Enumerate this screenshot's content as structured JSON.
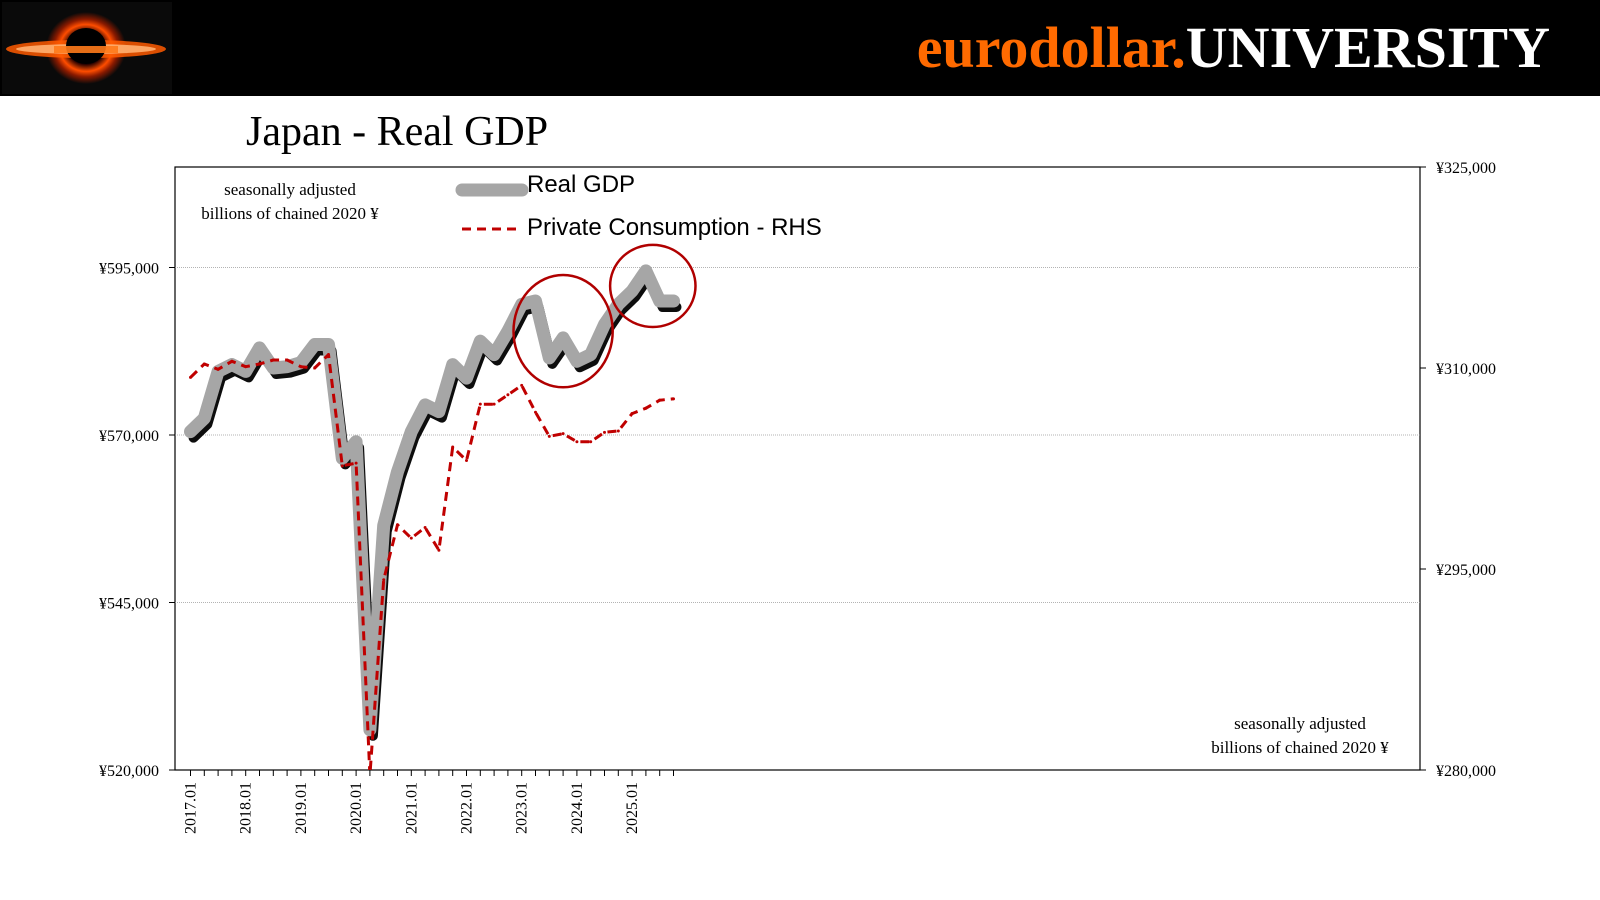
{
  "header": {
    "brand_part1": "eurodollar.",
    "brand_part2": "UNIVERSITY",
    "brand_color": "#ff6a00",
    "logo_icon": "black-hole-logo-icon"
  },
  "title": "Japan - Real GDP",
  "notes": {
    "top_left_line1": "seasonally adjusted",
    "top_left_line2": "billions of chained 2020 ¥",
    "bottom_right_line1": "seasonally adjusted",
    "bottom_right_line2": "billions of chained 2020 ¥"
  },
  "chart_data": {
    "type": "line",
    "title": "Japan - Real GDP",
    "x": [
      "2017.01",
      "2017.04",
      "2017.07",
      "2017.10",
      "2018.01",
      "2018.04",
      "2018.07",
      "2018.10",
      "2019.01",
      "2019.04",
      "2019.07",
      "2019.10",
      "2020.01",
      "2020.04",
      "2020.07",
      "2020.10",
      "2021.01",
      "2021.04",
      "2021.07",
      "2021.10",
      "2022.01",
      "2022.04",
      "2022.07",
      "2022.10",
      "2023.01",
      "2023.04",
      "2023.07",
      "2023.10",
      "2024.01",
      "2024.04",
      "2024.07",
      "2024.10",
      "2025.01",
      "2025.04",
      "2025.07",
      "2025.10"
    ],
    "x_ticks": [
      "2017.01",
      "2018.01",
      "2019.01",
      "2020.01",
      "2021.01",
      "2022.01",
      "2023.01",
      "2024.01",
      "2025.01"
    ],
    "series": [
      {
        "name": "Real GDP",
        "axis": "left",
        "style": "thick-gray",
        "color": "#a6a6a6",
        "values": [
          570500,
          572500,
          579500,
          580500,
          579500,
          583000,
          580000,
          580200,
          580800,
          583500,
          583500,
          566500,
          569000,
          526000,
          556500,
          564500,
          570500,
          574500,
          573500,
          580500,
          578500,
          584000,
          582000,
          585500,
          589500,
          590000,
          581500,
          584500,
          581000,
          582000,
          586500,
          589500,
          591500,
          594500,
          590000,
          590000
        ]
      },
      {
        "name": "Private Consumption - RHS",
        "axis": "right",
        "style": "dashed",
        "color": "#c00000",
        "values": [
          309300,
          310300,
          309900,
          310500,
          310100,
          310300,
          310600,
          310600,
          310100,
          310000,
          311000,
          302700,
          302900,
          279600,
          294200,
          298300,
          297300,
          298100,
          296400,
          304100,
          303100,
          307300,
          307300,
          308000,
          308700,
          306700,
          304900,
          305100,
          304500,
          304500,
          305200,
          305300,
          306600,
          307000,
          307600,
          307700
        ]
      }
    ],
    "left_axis": {
      "ylim": [
        520000,
        610000
      ],
      "ticks": [
        520000,
        545000,
        570000,
        595000
      ],
      "tick_labels": [
        "¥520,000",
        "¥545,000",
        "¥570,000",
        "¥595,000"
      ]
    },
    "right_axis": {
      "ylim": [
        280000,
        325000
      ],
      "ticks": [
        280000,
        295000,
        310000,
        325000
      ],
      "tick_labels": [
        "¥280,000",
        "¥295,000",
        "¥310,000",
        "¥325,000"
      ]
    },
    "highlight_ellipses": [
      {
        "from": "2023.04",
        "to": "2024.04",
        "note": "red circle around 2023 dip"
      },
      {
        "from": "2025.01",
        "to": "2025.10",
        "note": "red circle around 2025 dip"
      }
    ],
    "legend": {
      "placement": "top-center"
    },
    "grid": true
  }
}
